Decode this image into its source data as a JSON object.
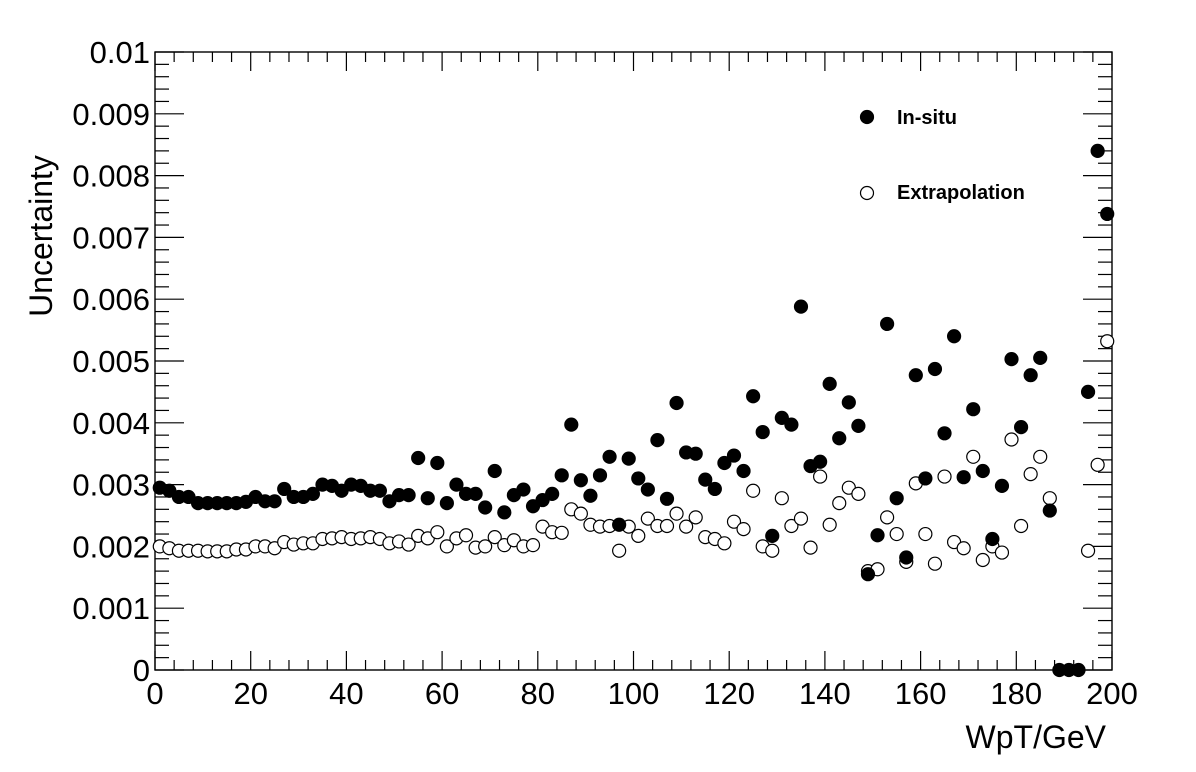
{
  "chart_data": {
    "type": "scatter",
    "xlabel": "WpT/GeV",
    "ylabel": "Uncertainty",
    "xlim": [
      0,
      200
    ],
    "ylim": [
      0,
      0.01
    ],
    "x_ticks": [
      "0",
      "20",
      "40",
      "60",
      "80",
      "100",
      "120",
      "140",
      "160",
      "180",
      "200"
    ],
    "y_ticks": [
      "0",
      "0.001",
      "0.002",
      "0.003",
      "0.004",
      "0.005",
      "0.006",
      "0.007",
      "0.008",
      "0.009",
      "0.01"
    ],
    "grid": false,
    "legend_position": "top-right",
    "series": [
      {
        "name": "In-situ",
        "marker": "filled-circle",
        "color": "#000000",
        "points": [
          [
            1,
            0.00295
          ],
          [
            3,
            0.0029
          ],
          [
            5,
            0.0028
          ],
          [
            7,
            0.0028
          ],
          [
            9,
            0.0027
          ],
          [
            11,
            0.0027
          ],
          [
            13,
            0.0027
          ],
          [
            15,
            0.0027
          ],
          [
            17,
            0.0027
          ],
          [
            19,
            0.00272
          ],
          [
            21,
            0.0028
          ],
          [
            23,
            0.00273
          ],
          [
            25,
            0.00273
          ],
          [
            27,
            0.00293
          ],
          [
            29,
            0.0028
          ],
          [
            31,
            0.0028
          ],
          [
            33,
            0.00285
          ],
          [
            35,
            0.003
          ],
          [
            37,
            0.00298
          ],
          [
            39,
            0.0029
          ],
          [
            41,
            0.003
          ],
          [
            43,
            0.00298
          ],
          [
            45,
            0.0029
          ],
          [
            47,
            0.0029
          ],
          [
            49,
            0.00273
          ],
          [
            51,
            0.00283
          ],
          [
            53,
            0.00283
          ],
          [
            55,
            0.00343
          ],
          [
            57,
            0.00278
          ],
          [
            59,
            0.00335
          ],
          [
            61,
            0.0027
          ],
          [
            63,
            0.003
          ],
          [
            65,
            0.00285
          ],
          [
            67,
            0.00285
          ],
          [
            69,
            0.00263
          ],
          [
            71,
            0.00322
          ],
          [
            73,
            0.00255
          ],
          [
            75,
            0.00283
          ],
          [
            77,
            0.00292
          ],
          [
            79,
            0.00265
          ],
          [
            81,
            0.00275
          ],
          [
            83,
            0.00285
          ],
          [
            85,
            0.00315
          ],
          [
            87,
            0.00397
          ],
          [
            89,
            0.00307
          ],
          [
            91,
            0.00282
          ],
          [
            93,
            0.00315
          ],
          [
            95,
            0.00345
          ],
          [
            97,
            0.00235
          ],
          [
            99,
            0.00342
          ],
          [
            101,
            0.0031
          ],
          [
            103,
            0.00292
          ],
          [
            105,
            0.00372
          ],
          [
            107,
            0.00277
          ],
          [
            109,
            0.00432
          ],
          [
            111,
            0.00352
          ],
          [
            113,
            0.0035
          ],
          [
            115,
            0.00308
          ],
          [
            117,
            0.00293
          ],
          [
            119,
            0.00335
          ],
          [
            121,
            0.00347
          ],
          [
            123,
            0.00322
          ],
          [
            125,
            0.00443
          ],
          [
            127,
            0.00385
          ],
          [
            129,
            0.00217
          ],
          [
            131,
            0.00408
          ],
          [
            133,
            0.00397
          ],
          [
            135,
            0.00588
          ],
          [
            137,
            0.0033
          ],
          [
            139,
            0.00337
          ],
          [
            141,
            0.00463
          ],
          [
            143,
            0.00375
          ],
          [
            145,
            0.00433
          ],
          [
            147,
            0.00395
          ],
          [
            149,
            0.00155
          ],
          [
            151,
            0.00218
          ],
          [
            153,
            0.0056
          ],
          [
            155,
            0.00278
          ],
          [
            157,
            0.00182
          ],
          [
            159,
            0.00477
          ],
          [
            161,
            0.0031
          ],
          [
            163,
            0.00487
          ],
          [
            165,
            0.00383
          ],
          [
            167,
            0.0054
          ],
          [
            169,
            0.00312
          ],
          [
            171,
            0.00422
          ],
          [
            173,
            0.00322
          ],
          [
            175,
            0.00212
          ],
          [
            177,
            0.00298
          ],
          [
            179,
            0.00503
          ],
          [
            181,
            0.00393
          ],
          [
            183,
            0.00477
          ],
          [
            185,
            0.00505
          ],
          [
            187,
            0.00258
          ],
          [
            189,
            0.0
          ],
          [
            191,
            0.0
          ],
          [
            193,
            0.0
          ],
          [
            195,
            0.0045
          ],
          [
            197,
            0.0084
          ],
          [
            199,
            0.00738
          ]
        ]
      },
      {
        "name": "Extrapolation",
        "marker": "open-circle",
        "color": "#000000",
        "points": [
          [
            1,
            0.002
          ],
          [
            3,
            0.00197
          ],
          [
            5,
            0.00193
          ],
          [
            7,
            0.00193
          ],
          [
            9,
            0.00193
          ],
          [
            11,
            0.00192
          ],
          [
            13,
            0.00192
          ],
          [
            15,
            0.00192
          ],
          [
            17,
            0.00195
          ],
          [
            19,
            0.00195
          ],
          [
            21,
            0.002
          ],
          [
            23,
            0.002
          ],
          [
            25,
            0.00197
          ],
          [
            27,
            0.00207
          ],
          [
            29,
            0.00203
          ],
          [
            31,
            0.00205
          ],
          [
            33,
            0.00205
          ],
          [
            35,
            0.00212
          ],
          [
            37,
            0.00213
          ],
          [
            39,
            0.00215
          ],
          [
            41,
            0.00212
          ],
          [
            43,
            0.00213
          ],
          [
            45,
            0.00215
          ],
          [
            47,
            0.00212
          ],
          [
            49,
            0.00205
          ],
          [
            51,
            0.00208
          ],
          [
            53,
            0.00203
          ],
          [
            55,
            0.00217
          ],
          [
            57,
            0.00213
          ],
          [
            59,
            0.00223
          ],
          [
            61,
            0.002
          ],
          [
            63,
            0.00213
          ],
          [
            65,
            0.00218
          ],
          [
            67,
            0.00198
          ],
          [
            69,
            0.002
          ],
          [
            71,
            0.00215
          ],
          [
            73,
            0.00202
          ],
          [
            75,
            0.0021
          ],
          [
            77,
            0.002
          ],
          [
            79,
            0.00202
          ],
          [
            81,
            0.00232
          ],
          [
            83,
            0.00223
          ],
          [
            85,
            0.00222
          ],
          [
            87,
            0.0026
          ],
          [
            89,
            0.00253
          ],
          [
            91,
            0.00235
          ],
          [
            93,
            0.00232
          ],
          [
            95,
            0.00233
          ],
          [
            97,
            0.00193
          ],
          [
            99,
            0.00232
          ],
          [
            101,
            0.00217
          ],
          [
            103,
            0.00245
          ],
          [
            105,
            0.00233
          ],
          [
            107,
            0.00233
          ],
          [
            109,
            0.00253
          ],
          [
            111,
            0.00232
          ],
          [
            113,
            0.00247
          ],
          [
            115,
            0.00215
          ],
          [
            117,
            0.00212
          ],
          [
            119,
            0.00205
          ],
          [
            121,
            0.0024
          ],
          [
            123,
            0.00228
          ],
          [
            125,
            0.0029
          ],
          [
            127,
            0.002
          ],
          [
            129,
            0.00193
          ],
          [
            131,
            0.00278
          ],
          [
            133,
            0.00233
          ],
          [
            135,
            0.00245
          ],
          [
            137,
            0.00198
          ],
          [
            139,
            0.00313
          ],
          [
            141,
            0.00235
          ],
          [
            143,
            0.0027
          ],
          [
            145,
            0.00295
          ],
          [
            147,
            0.00285
          ],
          [
            149,
            0.0016
          ],
          [
            151,
            0.00163
          ],
          [
            153,
            0.00247
          ],
          [
            155,
            0.0022
          ],
          [
            157,
            0.00175
          ],
          [
            159,
            0.00302
          ],
          [
            161,
            0.0022
          ],
          [
            163,
            0.00172
          ],
          [
            165,
            0.00313
          ],
          [
            167,
            0.00207
          ],
          [
            169,
            0.00197
          ],
          [
            171,
            0.00345
          ],
          [
            173,
            0.00178
          ],
          [
            175,
            0.002
          ],
          [
            177,
            0.0019
          ],
          [
            179,
            0.00373
          ],
          [
            181,
            0.00233
          ],
          [
            183,
            0.00317
          ],
          [
            185,
            0.00345
          ],
          [
            187,
            0.00278
          ],
          [
            195,
            0.00193
          ],
          [
            197,
            0.00332
          ],
          [
            199,
            0.00532
          ]
        ]
      }
    ]
  }
}
